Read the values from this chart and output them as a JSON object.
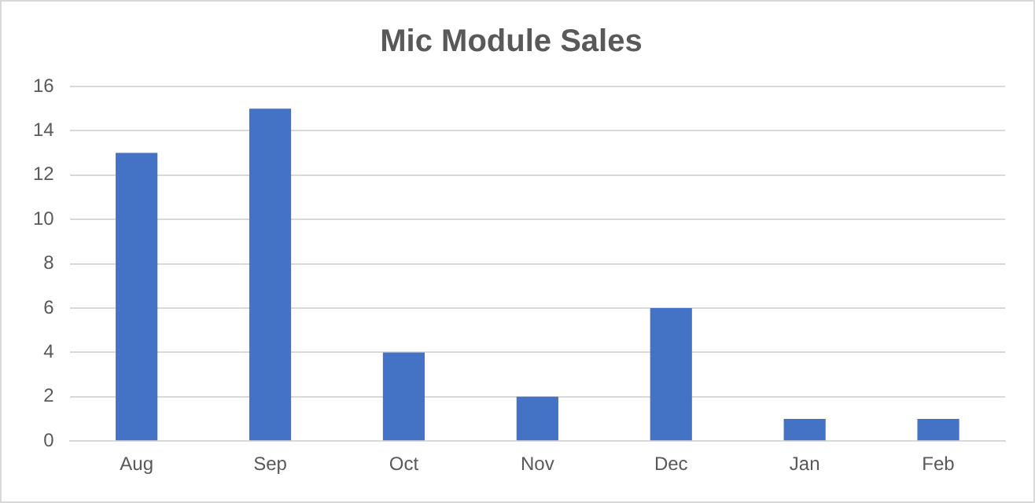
{
  "chart_data": {
    "type": "bar",
    "title": "Mic Module Sales",
    "categories": [
      "Aug",
      "Sep",
      "Oct",
      "Nov",
      "Dec",
      "Jan",
      "Feb"
    ],
    "values": [
      13,
      15,
      4,
      2,
      6,
      1,
      1
    ],
    "color": "#4472c4",
    "ylim": [
      0,
      16
    ],
    "yticks": [
      0,
      2,
      4,
      6,
      8,
      10,
      12,
      14,
      16
    ],
    "grid": "y"
  }
}
